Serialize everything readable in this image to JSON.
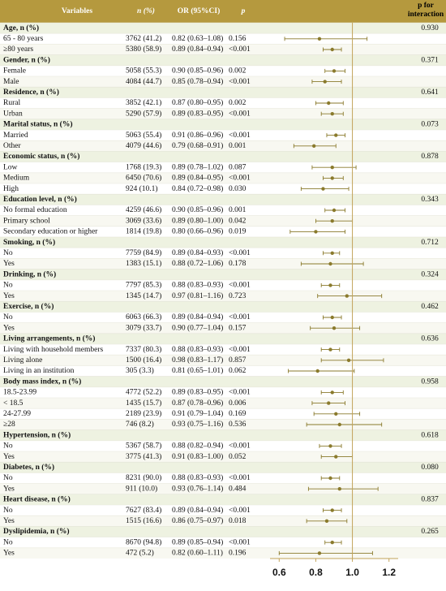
{
  "header": {
    "columns": [
      "Variables",
      "n (%)",
      "OR (95%CI)",
      "p",
      "p for interaction"
    ]
  },
  "groups": [
    {
      "label": "Age, n (%)",
      "p_interaction": "0.930",
      "rows": [
        {
          "label": "65 - 80 years",
          "n": "3762 (41.2)",
          "or_ci": "0.82 (0.63–1.08)",
          "p": "0.156",
          "or": 0.82,
          "lower": 0.63,
          "upper": 1.08
        },
        {
          "label": "≥80 years",
          "n": "5380 (58.9)",
          "or_ci": "0.89 (0.84–0.94)",
          "p": "<0.001",
          "or": 0.89,
          "lower": 0.84,
          "upper": 0.94
        }
      ]
    },
    {
      "label": "Gender, n (%)",
      "p_interaction": "0.371",
      "rows": [
        {
          "label": "Female",
          "n": "5058 (55.3)",
          "or_ci": "0.90 (0.85–0.96)",
          "p": "0.002",
          "or": 0.9,
          "lower": 0.85,
          "upper": 0.96
        },
        {
          "label": "Male",
          "n": "4084 (44.7)",
          "or_ci": "0.85 (0.78–0.94)",
          "p": "<0.001",
          "or": 0.85,
          "lower": 0.78,
          "upper": 0.94
        }
      ]
    },
    {
      "label": "Residence, n (%)",
      "p_interaction": "0.641",
      "rows": [
        {
          "label": "Rural",
          "n": "3852 (42.1)",
          "or_ci": "0.87 (0.80–0.95)",
          "p": "0.002",
          "or": 0.87,
          "lower": 0.8,
          "upper": 0.95
        },
        {
          "label": "Urban",
          "n": "5290 (57.9)",
          "or_ci": "0.89 (0.83–0.95)",
          "p": "<0.001",
          "or": 0.89,
          "lower": 0.83,
          "upper": 0.95
        }
      ]
    },
    {
      "label": "Marital status, n (%)",
      "p_interaction": "0.073",
      "rows": [
        {
          "label": "Married",
          "n": "5063 (55.4)",
          "or_ci": "0.91 (0.86–0.96)",
          "p": "<0.001",
          "or": 0.91,
          "lower": 0.86,
          "upper": 0.96
        },
        {
          "label": "Other",
          "n": "4079 (44.6)",
          "or_ci": "0.79 (0.68–0.91)",
          "p": "0.001",
          "or": 0.79,
          "lower": 0.68,
          "upper": 0.91
        }
      ]
    },
    {
      "label": "Economic status, n (%)",
      "p_interaction": "0.878",
      "rows": [
        {
          "label": "Low",
          "n": "1768 (19.3)",
          "or_ci": "0.89 (0.78–1.02)",
          "p": "0.087",
          "or": 0.89,
          "lower": 0.78,
          "upper": 1.02
        },
        {
          "label": "Medium",
          "n": "6450 (70.6)",
          "or_ci": "0.89 (0.84–0.95)",
          "p": "<0.001",
          "or": 0.89,
          "lower": 0.84,
          "upper": 0.95
        },
        {
          "label": "High",
          "n": "924 (10.1)",
          "or_ci": "0.84 (0.72–0.98)",
          "p": "0.030",
          "or": 0.84,
          "lower": 0.72,
          "upper": 0.98
        }
      ]
    },
    {
      "label": "Education level, n (%)",
      "p_interaction": "0.343",
      "rows": [
        {
          "label": "No formal education",
          "n": "4259 (46.6)",
          "or_ci": "0.90 (0.85–0.96)",
          "p": "0.001",
          "or": 0.9,
          "lower": 0.85,
          "upper": 0.96
        },
        {
          "label": "Primary school",
          "n": "3069 (33.6)",
          "or_ci": "0.89 (0.80–1.00)",
          "p": "0.042",
          "or": 0.89,
          "lower": 0.8,
          "upper": 1.0
        },
        {
          "label": "Secondary education or higher",
          "n": "1814 (19.8)",
          "or_ci": "0.80 (0.66–0.96)",
          "p": "0.019",
          "or": 0.8,
          "lower": 0.66,
          "upper": 0.96
        }
      ]
    },
    {
      "label": "Smoking, n (%)",
      "p_interaction": "0.712",
      "rows": [
        {
          "label": "No",
          "n": "7759 (84.9)",
          "or_ci": "0.89 (0.84–0.93)",
          "p": "<0.001",
          "or": 0.89,
          "lower": 0.84,
          "upper": 0.93
        },
        {
          "label": "Yes",
          "n": "1383 (15.1)",
          "or_ci": "0.88 (0.72–1.06)",
          "p": "0.178",
          "or": 0.88,
          "lower": 0.72,
          "upper": 1.06
        }
      ]
    },
    {
      "label": "Drinking, n (%)",
      "p_interaction": "0.324",
      "rows": [
        {
          "label": "No",
          "n": "7797 (85.3)",
          "or_ci": "0.88 (0.83–0.93)",
          "p": "<0.001",
          "or": 0.88,
          "lower": 0.83,
          "upper": 0.93
        },
        {
          "label": "Yes",
          "n": "1345 (14.7)",
          "or_ci": "0.97 (0.81–1.16)",
          "p": "0.723",
          "or": 0.97,
          "lower": 0.81,
          "upper": 1.16
        }
      ]
    },
    {
      "label": "Exercise, n (%)",
      "p_interaction": "0.462",
      "rows": [
        {
          "label": "No",
          "n": "6063 (66.3)",
          "or_ci": "0.89 (0.84–0.94)",
          "p": "<0.001",
          "or": 0.89,
          "lower": 0.84,
          "upper": 0.94
        },
        {
          "label": "Yes",
          "n": "3079 (33.7)",
          "or_ci": "0.90 (0.77–1.04)",
          "p": "0.157",
          "or": 0.9,
          "lower": 0.77,
          "upper": 1.04
        }
      ]
    },
    {
      "label": "Living arrangements, n (%)",
      "p_interaction": "0.636",
      "rows": [
        {
          "label": "Living with household members",
          "n": "7337 (80.3)",
          "or_ci": "0.88 (0.83–0.93)",
          "p": "<0.001",
          "or": 0.88,
          "lower": 0.83,
          "upper": 0.93
        },
        {
          "label": "Living alone",
          "n": "1500 (16.4)",
          "or_ci": "0.98 (0.83–1.17)",
          "p": "0.857",
          "or": 0.98,
          "lower": 0.83,
          "upper": 1.17
        },
        {
          "label": "Living in an institution",
          "n": "305 (3.3)",
          "or_ci": "0.81 (0.65–1.01)",
          "p": "0.062",
          "or": 0.81,
          "lower": 0.65,
          "upper": 1.01
        }
      ]
    },
    {
      "label": "Body mass index, n (%)",
      "p_interaction": "0.958",
      "rows": [
        {
          "label": "18.5-23.99",
          "n": "4772 (52.2)",
          "or_ci": "0.89 (0.83–0.95)",
          "p": "<0.001",
          "or": 0.89,
          "lower": 0.83,
          "upper": 0.95
        },
        {
          "label": "< 18.5",
          "n": "1435 (15.7)",
          "or_ci": "0.87 (0.78–0.96)",
          "p": "0.006",
          "or": 0.87,
          "lower": 0.78,
          "upper": 0.96
        },
        {
          "label": "24-27.99",
          "n": "2189 (23.9)",
          "or_ci": "0.91 (0.79–1.04)",
          "p": "0.169",
          "or": 0.91,
          "lower": 0.79,
          "upper": 1.04
        },
        {
          "label": "≥28",
          "n": "746 (8.2)",
          "or_ci": "0.93 (0.75–1.16)",
          "p": "0.536",
          "or": 0.93,
          "lower": 0.75,
          "upper": 1.16
        }
      ]
    },
    {
      "label": "Hypertension, n (%)",
      "p_interaction": "0.618",
      "rows": [
        {
          "label": "No",
          "n": "5367 (58.7)",
          "or_ci": "0.88 (0.82–0.94)",
          "p": "<0.001",
          "or": 0.88,
          "lower": 0.82,
          "upper": 0.94
        },
        {
          "label": "Yes",
          "n": "3775 (41.3)",
          "or_ci": "0.91 (0.83–1.00)",
          "p": "0.052",
          "or": 0.91,
          "lower": 0.83,
          "upper": 1.0
        }
      ]
    },
    {
      "label": "Diabetes, n (%)",
      "p_interaction": "0.080",
      "rows": [
        {
          "label": "No",
          "n": "8231 (90.0)",
          "or_ci": "0.88 (0.83–0.93)",
          "p": "<0.001",
          "or": 0.88,
          "lower": 0.83,
          "upper": 0.93
        },
        {
          "label": "Yes",
          "n": "911 (10.0)",
          "or_ci": "0.93 (0.76–1.14)",
          "p": "0.484",
          "or": 0.93,
          "lower": 0.76,
          "upper": 1.14
        }
      ]
    },
    {
      "label": "Heart disease, n (%)",
      "p_interaction": "0.837",
      "rows": [
        {
          "label": "No",
          "n": "7627 (83.4)",
          "or_ci": "0.89 (0.84–0.94)",
          "p": "<0.001",
          "or": 0.89,
          "lower": 0.84,
          "upper": 0.94
        },
        {
          "label": "Yes",
          "n": "1515 (16.6)",
          "or_ci": "0.86 (0.75–0.97)",
          "p": "0.018",
          "or": 0.86,
          "lower": 0.75,
          "upper": 0.97
        }
      ]
    },
    {
      "label": "Dyslipidemia, n (%)",
      "p_interaction": "0.265",
      "rows": [
        {
          "label": "No",
          "n": "8670 (94.8)",
          "or_ci": "0.89 (0.85–0.94)",
          "p": "<0.001",
          "or": 0.89,
          "lower": 0.85,
          "upper": 0.94
        },
        {
          "label": "Yes",
          "n": "472 (5.2)",
          "or_ci": "0.82 (0.60–1.11)",
          "p": "0.196",
          "or": 0.82,
          "lower": 0.6,
          "upper": 1.11
        }
      ]
    }
  ],
  "forest": {
    "xlim": [
      0.55,
      1.25
    ],
    "xticks": [
      0.6,
      0.8,
      {
        "value": 1,
        "label": "1.0"
      },
      1.2
    ],
    "reference": 1,
    "color": "#8a7a2c",
    "reference_color": "#c2a35a"
  }
}
